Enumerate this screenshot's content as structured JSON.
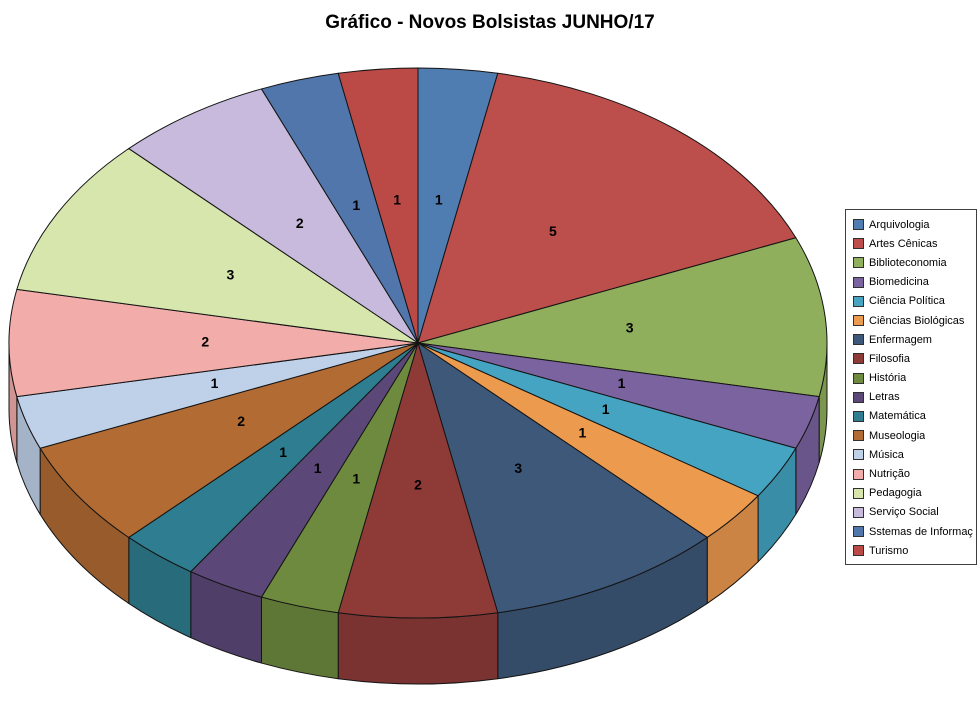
{
  "title": "Gráfico - Novos Bolsistas JUNHO/17",
  "chart_data": {
    "type": "pie",
    "style": "3d-pie",
    "title": "Gráfico - Novos Bolsistas JUNHO/17",
    "total": 32,
    "start_angle_deg": 0,
    "direction": "clockwise",
    "legend_position": "right",
    "data_labels": "value",
    "background": "#ffffff",
    "slices": [
      {
        "label": "Arquivologia",
        "value": 1,
        "color": "#4F7CB1"
      },
      {
        "label": "Artes Cênicas",
        "value": 5,
        "color": "#BC4E4B"
      },
      {
        "label": "Biblioteconomia",
        "value": 3,
        "color": "#8FAF5C"
      },
      {
        "label": "Biomedicina",
        "value": 1,
        "color": "#7B63A0"
      },
      {
        "label": "Ciência Política",
        "value": 1,
        "color": "#44A4C1"
      },
      {
        "label": "Ciências Biológicas",
        "value": 1,
        "color": "#EC9A4E"
      },
      {
        "label": "Enfermagem",
        "value": 3,
        "color": "#3E587A"
      },
      {
        "label": "Filosofia",
        "value": 2,
        "color": "#8E3B38"
      },
      {
        "label": "História",
        "value": 1,
        "color": "#6E8A3F"
      },
      {
        "label": "Letras",
        "value": 1,
        "color": "#5C4878"
      },
      {
        "label": "Matemática",
        "value": 1,
        "color": "#2E7D90"
      },
      {
        "label": "Museologia",
        "value": 2,
        "color": "#B16B33"
      },
      {
        "label": "Música",
        "value": 1,
        "color": "#BFD0E9"
      },
      {
        "label": "Nutrição",
        "value": 2,
        "color": "#F2ACAA"
      },
      {
        "label": "Pedagogia",
        "value": 3,
        "color": "#D6E6AC"
      },
      {
        "label": "Serviço Social",
        "value": 2,
        "color": "#C7BADC"
      },
      {
        "label": "Sstemas de Informação",
        "value": 1,
        "color": "#5076AB"
      },
      {
        "label": "Turismo",
        "value": 1,
        "color": "#BB4A47"
      }
    ]
  }
}
